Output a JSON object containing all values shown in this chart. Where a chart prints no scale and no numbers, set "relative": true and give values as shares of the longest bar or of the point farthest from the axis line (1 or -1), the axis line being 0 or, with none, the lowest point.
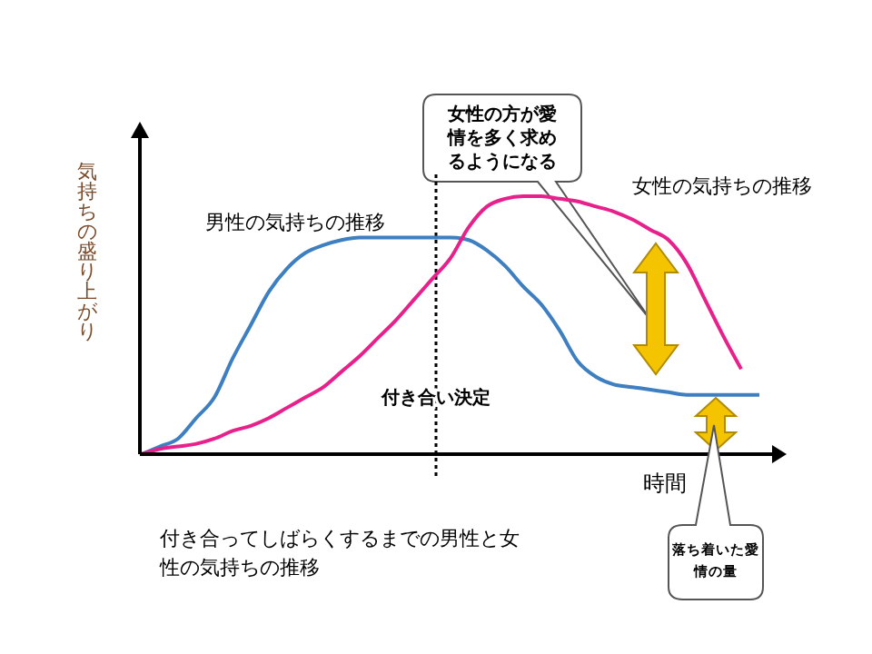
{
  "chart_data": {
    "type": "line",
    "relative": true,
    "xlabel": "時間",
    "ylabel": "気持ちの盛り上がり",
    "categories": [
      null,
      null,
      null,
      null,
      null,
      null,
      null,
      null,
      null,
      null,
      null,
      null,
      null,
      null,
      null,
      null,
      null,
      null,
      null,
      null,
      null,
      null,
      null,
      null,
      null,
      null,
      null,
      null,
      null,
      null,
      null,
      null,
      null,
      null,
      null
    ],
    "series": [
      {
        "name": "男性の気持ちの推移",
        "color": "#3d7fc0",
        "values": [
          0,
          0.03,
          0.06,
          0.14,
          0.22,
          0.37,
          0.5,
          0.63,
          0.72,
          0.78,
          0.81,
          0.83,
          0.84,
          0.84,
          0.84,
          0.84,
          0.84,
          0.84,
          0.83,
          0.79,
          0.73,
          0.65,
          0.58,
          0.48,
          0.36,
          0.3,
          0.27,
          0.26,
          0.25,
          0.24,
          0.23,
          0.23,
          0.23,
          0.23,
          0.23
        ]
      },
      {
        "name": "女性の気持ちの推移",
        "color": "#e8208c",
        "values": [
          0,
          0.02,
          0.03,
          0.04,
          0.06,
          0.09,
          0.11,
          0.14,
          0.18,
          0.22,
          0.26,
          0.32,
          0.38,
          0.45,
          0.52,
          0.6,
          0.68,
          0.76,
          0.88,
          0.96,
          0.99,
          1,
          1,
          0.99,
          0.98,
          0.96,
          0.94,
          0.91,
          0.87,
          0.83,
          0.74,
          0.6,
          0.46,
          0.33,
          null
        ]
      }
    ],
    "annotations": [
      "女性の方が愛情を多く求めるようになる",
      "落ち着いた愛情の量",
      "付き合ってしばらくするまでの男性と女性の気持ちの推移",
      "付き合い決定"
    ],
    "marker": "none",
    "line_style": "solid"
  }
}
